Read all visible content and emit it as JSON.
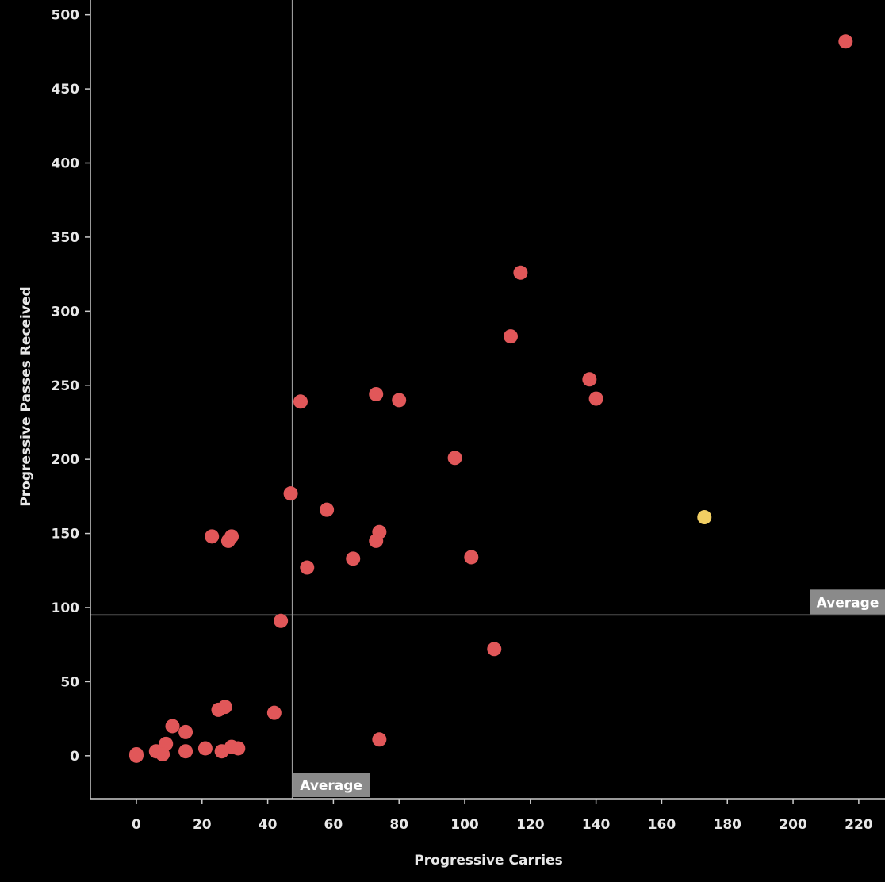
{
  "chart_data": {
    "type": "scatter",
    "title": "",
    "xlabel": "Progressive Carries",
    "ylabel": "Progressive Passes Received",
    "xlim": [
      -14,
      228
    ],
    "ylim": [
      -29,
      510
    ],
    "xticks": [
      0,
      20,
      40,
      60,
      80,
      100,
      120,
      140,
      160,
      180,
      200,
      220
    ],
    "yticks": [
      0,
      50,
      100,
      150,
      200,
      250,
      300,
      350,
      400,
      450,
      500
    ],
    "grid": false,
    "reference_lines": [
      {
        "axis": "x",
        "value": 47.5,
        "label": "Average"
      },
      {
        "axis": "y",
        "value": 95,
        "label": "Average"
      }
    ],
    "colors": {
      "default": "#e15759",
      "highlight": "#f1ce63",
      "background": "#000000",
      "axis": "#cccccc"
    },
    "points": [
      {
        "x": 216,
        "y": 482,
        "highlight": false
      },
      {
        "x": 117,
        "y": 326,
        "highlight": false
      },
      {
        "x": 114,
        "y": 283,
        "highlight": false
      },
      {
        "x": 138,
        "y": 254,
        "highlight": false
      },
      {
        "x": 140,
        "y": 241,
        "highlight": false
      },
      {
        "x": 73,
        "y": 244,
        "highlight": false
      },
      {
        "x": 80,
        "y": 240,
        "highlight": false
      },
      {
        "x": 50,
        "y": 239,
        "highlight": false
      },
      {
        "x": 97,
        "y": 201,
        "highlight": false
      },
      {
        "x": 47,
        "y": 177,
        "highlight": false
      },
      {
        "x": 58,
        "y": 166,
        "highlight": false
      },
      {
        "x": 173,
        "y": 161,
        "highlight": true
      },
      {
        "x": 74,
        "y": 151,
        "highlight": false
      },
      {
        "x": 73,
        "y": 145,
        "highlight": false
      },
      {
        "x": 23,
        "y": 148,
        "highlight": false
      },
      {
        "x": 29,
        "y": 148,
        "highlight": false
      },
      {
        "x": 28,
        "y": 145,
        "highlight": false
      },
      {
        "x": 66,
        "y": 133,
        "highlight": false
      },
      {
        "x": 102,
        "y": 134,
        "highlight": false
      },
      {
        "x": 52,
        "y": 127,
        "highlight": false
      },
      {
        "x": 44,
        "y": 91,
        "highlight": false
      },
      {
        "x": 109,
        "y": 72,
        "highlight": false
      },
      {
        "x": 27,
        "y": 33,
        "highlight": false
      },
      {
        "x": 25,
        "y": 31,
        "highlight": false
      },
      {
        "x": 42,
        "y": 29,
        "highlight": false
      },
      {
        "x": 11,
        "y": 20,
        "highlight": false
      },
      {
        "x": 15,
        "y": 16,
        "highlight": false
      },
      {
        "x": 74,
        "y": 11,
        "highlight": false
      },
      {
        "x": 9,
        "y": 8,
        "highlight": false
      },
      {
        "x": 29,
        "y": 6,
        "highlight": false
      },
      {
        "x": 31,
        "y": 5,
        "highlight": false
      },
      {
        "x": 21,
        "y": 5,
        "highlight": false
      },
      {
        "x": 6,
        "y": 3,
        "highlight": false
      },
      {
        "x": 15,
        "y": 3,
        "highlight": false
      },
      {
        "x": 26,
        "y": 3,
        "highlight": false
      },
      {
        "x": 8,
        "y": 1,
        "highlight": false
      },
      {
        "x": 0,
        "y": 0,
        "highlight": false
      },
      {
        "x": 0,
        "y": 1,
        "highlight": false
      }
    ]
  }
}
